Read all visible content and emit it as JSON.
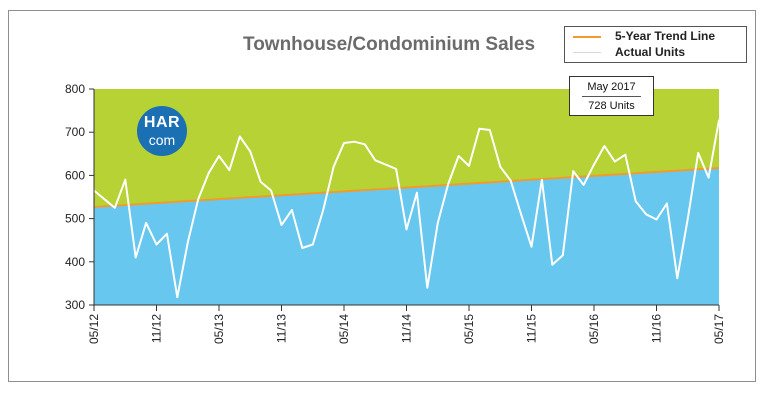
{
  "title": "Townhouse/Condominium Sales",
  "logo": {
    "line1": "HAR",
    "line2": "com"
  },
  "legend": [
    {
      "label": "5-Year Trend Line",
      "color": "#f39a2b"
    },
    {
      "label": "Actual Units",
      "color": "#ffffff"
    }
  ],
  "callout": {
    "month": "May 2017",
    "units": "728 Units"
  },
  "colors": {
    "above_fill": "#b6d234",
    "below_fill": "#67c7ef",
    "actual_line": "#ffffff",
    "trend_line": "#f39a2b"
  },
  "chart_data": {
    "type": "line",
    "title": "Townhouse/Condominium Sales",
    "x_tick_labels": [
      "05/12",
      "11/12",
      "05/13",
      "11/13",
      "05/14",
      "11/14",
      "05/15",
      "11/15",
      "05/16",
      "11/16",
      "05/17"
    ],
    "y_ticks": [
      300,
      400,
      500,
      600,
      700,
      800
    ],
    "ylim": [
      300,
      800
    ],
    "grid": false,
    "legend_position": "top-right",
    "series": [
      {
        "name": "Actual Units",
        "x": [
          "05/12",
          "06/12",
          "07/12",
          "08/12",
          "09/12",
          "10/12",
          "11/12",
          "12/12",
          "01/13",
          "02/13",
          "03/13",
          "04/13",
          "05/13",
          "06/13",
          "07/13",
          "08/13",
          "09/13",
          "10/13",
          "11/13",
          "12/13",
          "01/14",
          "02/14",
          "03/14",
          "04/14",
          "05/14",
          "06/14",
          "07/14",
          "08/14",
          "09/14",
          "10/14",
          "11/14",
          "12/14",
          "01/15",
          "02/15",
          "03/15",
          "04/15",
          "05/15",
          "06/15",
          "07/15",
          "08/15",
          "09/15",
          "10/15",
          "11/15",
          "12/15",
          "01/16",
          "02/16",
          "03/16",
          "04/16",
          "05/16",
          "06/16",
          "07/16",
          "08/16",
          "09/16",
          "10/16",
          "11/16",
          "12/16",
          "01/17",
          "02/17",
          "03/17",
          "04/17",
          "05/17"
        ],
        "values": [
          565,
          545,
          525,
          590,
          410,
          490,
          440,
          465,
          318,
          445,
          545,
          605,
          645,
          612,
          690,
          655,
          585,
          565,
          485,
          520,
          432,
          440,
          520,
          620,
          675,
          678,
          672,
          635,
          625,
          615,
          475,
          560,
          340,
          490,
          580,
          645,
          622,
          708,
          705,
          620,
          588,
          510,
          435,
          590,
          393,
          415,
          610,
          578,
          625,
          668,
          632,
          648,
          540,
          510,
          498,
          535,
          362,
          500,
          652,
          595,
          728
        ]
      },
      {
        "name": "5-Year Trend Line",
        "x": [
          "05/12",
          "05/17"
        ],
        "values": [
          527,
          617
        ]
      }
    ]
  }
}
